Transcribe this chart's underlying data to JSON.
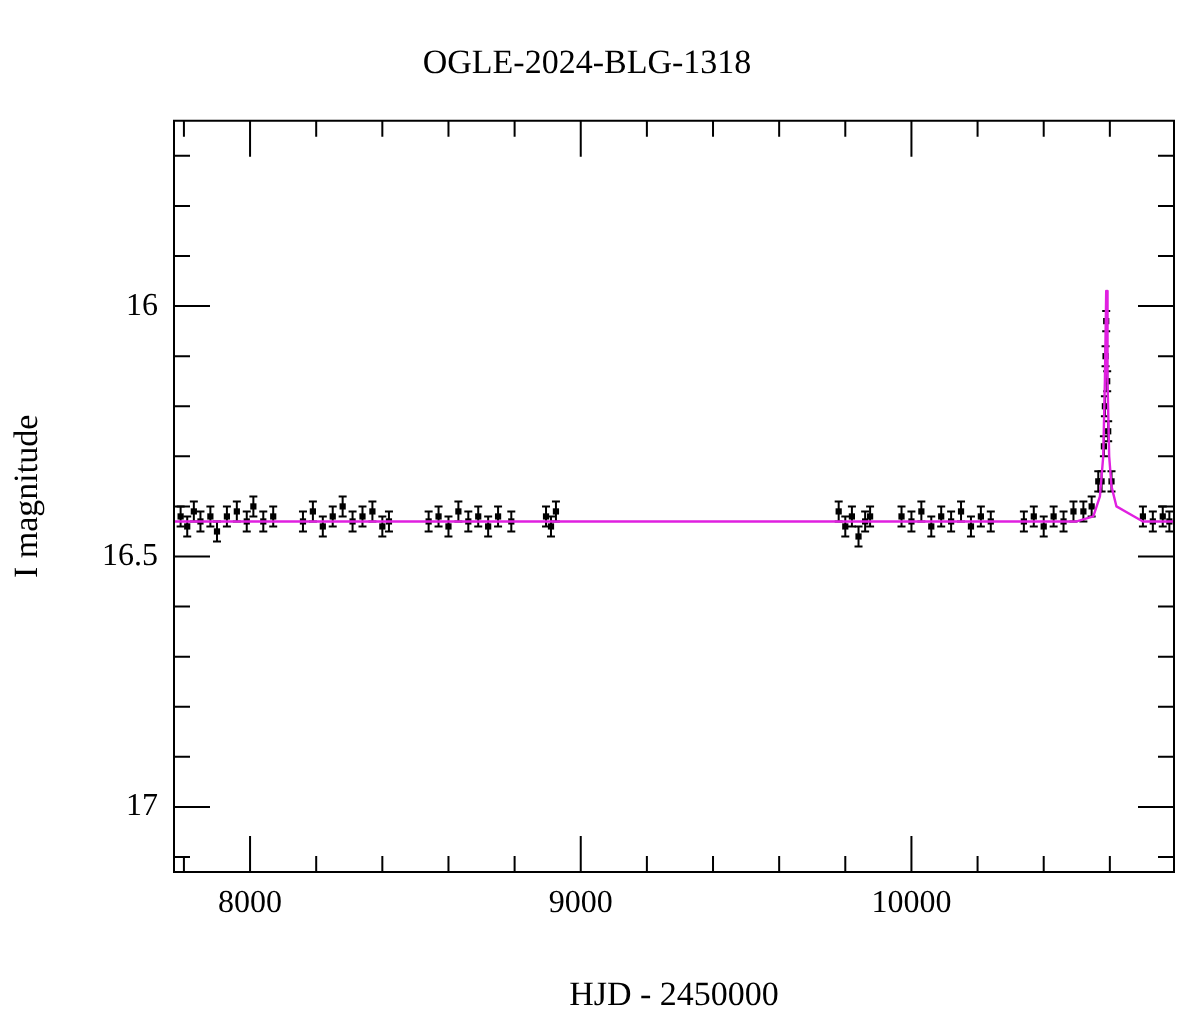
{
  "chart_data": {
    "type": "scatter",
    "title": "OGLE-2024-BLG-1318",
    "xlabel": "HJD - 2450000",
    "ylabel": "I magnitude",
    "xlim": [
      7770,
      10794
    ],
    "ylim": [
      17.13,
      15.63
    ],
    "xticks": [
      {
        "value": 7800,
        "label": null
      },
      8000,
      {
        "value": 8200,
        "label": null
      },
      {
        "value": 8400,
        "label": null
      },
      {
        "value": 8600,
        "label": null
      },
      {
        "value": 8800,
        "label": null
      },
      9000,
      {
        "value": 9200,
        "label": null
      },
      {
        "value": 9400,
        "label": null
      },
      {
        "value": 9600,
        "label": null
      },
      {
        "value": 9800,
        "label": null
      },
      10000,
      {
        "value": 10200,
        "label": null
      },
      {
        "value": 10400,
        "label": null
      },
      {
        "value": 10600,
        "label": null
      }
    ],
    "yticks": [
      {
        "value": 15.7,
        "label": null
      },
      {
        "value": 15.8,
        "label": null
      },
      {
        "value": 15.9,
        "label": null
      },
      16,
      {
        "value": 16.1,
        "label": null
      },
      {
        "value": 16.2,
        "label": null
      },
      {
        "value": 16.3,
        "label": null
      },
      {
        "value": 16.4,
        "label": null
      },
      16.5,
      {
        "value": 16.6,
        "label": null
      },
      {
        "value": 16.7,
        "label": null
      },
      {
        "value": 16.8,
        "label": null
      },
      {
        "value": 16.9,
        "label": null
      },
      17,
      {
        "value": 17.1,
        "label": null
      }
    ],
    "grid": false,
    "legend": false,
    "series": [
      {
        "color": "#000000",
        "marker": "square",
        "x": [
          7790,
          7810,
          7830,
          7850,
          7880,
          7900,
          7930,
          7960,
          7990,
          8010,
          8040,
          8070,
          8160,
          8190,
          8220,
          8250,
          8280,
          8310,
          8340,
          8370,
          8400,
          8420,
          8540,
          8570,
          8600,
          8630,
          8660,
          8690,
          8720,
          8750,
          8790,
          8895,
          8910,
          8925,
          9780,
          9800,
          9820,
          9840,
          9860,
          9875,
          9970,
          10000,
          10030,
          10060,
          10090,
          10120,
          10150,
          10180,
          10210,
          10240,
          10340,
          10370,
          10400,
          10430,
          10460,
          10490,
          10520,
          10545,
          10565,
          10575,
          10582,
          10585,
          10587,
          10589,
          10592,
          10595,
          10605,
          10700,
          10730,
          10760,
          10780
        ],
        "values": [
          16.42,
          16.44,
          16.41,
          16.43,
          16.42,
          16.45,
          16.42,
          16.41,
          16.43,
          16.4,
          16.43,
          16.42,
          16.43,
          16.41,
          16.44,
          16.42,
          16.4,
          16.43,
          16.42,
          16.41,
          16.44,
          16.43,
          16.43,
          16.42,
          16.44,
          16.41,
          16.43,
          16.42,
          16.44,
          16.42,
          16.43,
          16.42,
          16.44,
          16.41,
          16.41,
          16.44,
          16.42,
          16.46,
          16.43,
          16.42,
          16.42,
          16.43,
          16.41,
          16.44,
          16.42,
          16.43,
          16.41,
          16.44,
          16.42,
          16.43,
          16.43,
          16.42,
          16.44,
          16.42,
          16.43,
          16.41,
          16.41,
          16.4,
          16.35,
          16.35,
          16.28,
          16.2,
          16.1,
          16.03,
          16.15,
          16.25,
          16.35,
          16.42,
          16.43,
          16.42,
          16.43
        ],
        "errors": [
          0.02,
          0.02,
          0.02,
          0.02,
          0.02,
          0.02,
          0.02,
          0.02,
          0.02,
          0.02,
          0.02,
          0.02,
          0.02,
          0.02,
          0.02,
          0.02,
          0.02,
          0.02,
          0.02,
          0.02,
          0.02,
          0.02,
          0.02,
          0.02,
          0.02,
          0.02,
          0.02,
          0.02,
          0.02,
          0.02,
          0.02,
          0.02,
          0.02,
          0.02,
          0.02,
          0.02,
          0.02,
          0.02,
          0.02,
          0.02,
          0.02,
          0.02,
          0.02,
          0.02,
          0.02,
          0.02,
          0.02,
          0.02,
          0.02,
          0.02,
          0.02,
          0.02,
          0.02,
          0.02,
          0.02,
          0.02,
          0.02,
          0.02,
          0.02,
          0.02,
          0.02,
          0.02,
          0.02,
          0.02,
          0.02,
          0.02,
          0.02,
          0.02,
          0.02,
          0.02,
          0.02
        ]
      },
      {
        "type": "line",
        "color": "#e020e0",
        "marker": "none",
        "x": [
          7770,
          10500,
          10550,
          10570,
          10580,
          10585,
          10589,
          10593,
          10598,
          10605,
          10620,
          10700,
          10794
        ],
        "values": [
          16.43,
          16.43,
          16.42,
          16.38,
          16.3,
          16.15,
          15.97,
          16.15,
          16.3,
          16.36,
          16.4,
          16.43,
          16.43
        ]
      }
    ]
  }
}
